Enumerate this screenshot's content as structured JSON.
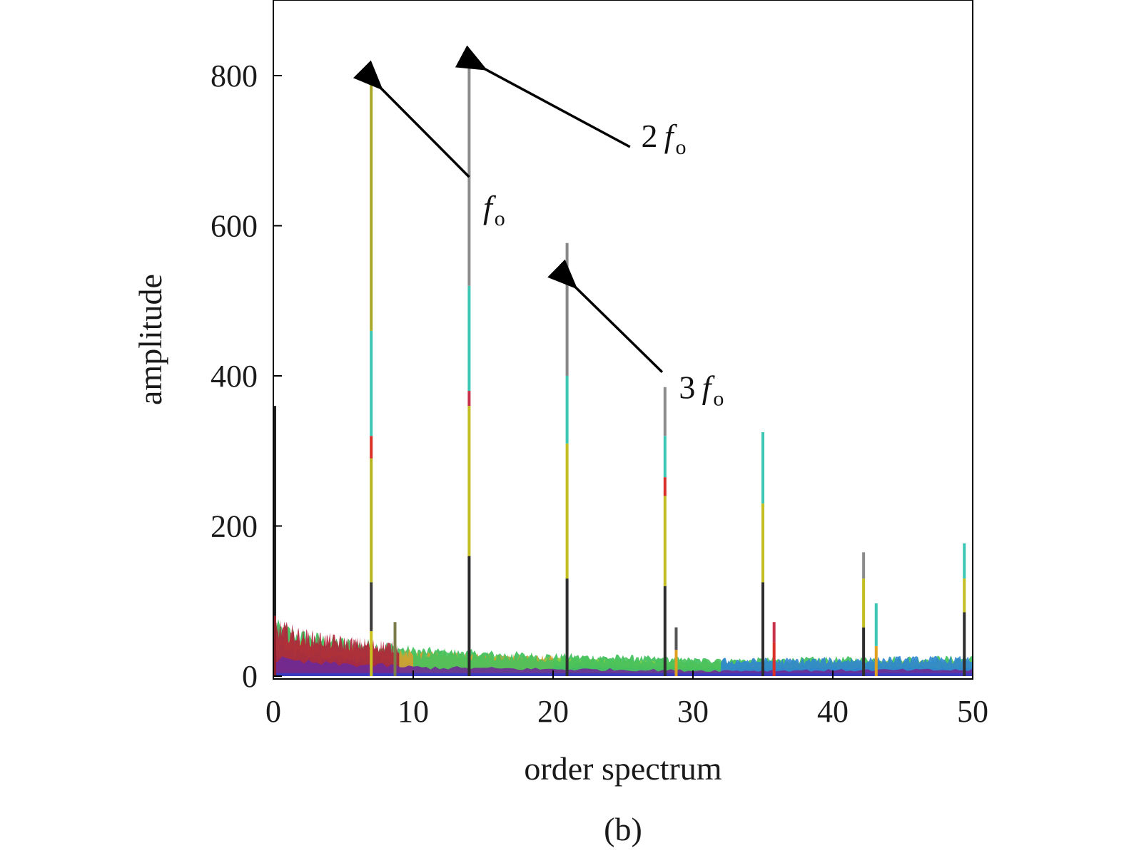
{
  "chart_data": {
    "type": "bar",
    "title": "",
    "xlabel": "order spectrum",
    "ylabel": "amplitude",
    "caption": "(b)",
    "xlim": [
      0,
      50
    ],
    "ylim": [
      0,
      900
    ],
    "xticks": [
      0,
      10,
      20,
      30,
      40,
      50
    ],
    "yticks": [
      0,
      200,
      400,
      600,
      800
    ],
    "grid": false,
    "legend": "none",
    "peaks": [
      {
        "x": 0.1,
        "y": 360,
        "segments": [
          {
            "to": 80,
            "color": "#8a1f2c"
          },
          {
            "to": 360,
            "color": "#1c1c1c"
          }
        ]
      },
      {
        "x": 7.0,
        "y": 797,
        "segments": [
          {
            "to": 60,
            "color": "#c9c21f"
          },
          {
            "to": 125,
            "color": "#3a3a3a"
          },
          {
            "to": 290,
            "color": "#b8b620"
          },
          {
            "to": 320,
            "color": "#d9302a"
          },
          {
            "to": 460,
            "color": "#3cc7b4"
          },
          {
            "to": 797,
            "color": "#a8a82a"
          }
        ]
      },
      {
        "x": 8.7,
        "y": 72,
        "segments": [
          {
            "to": 72,
            "color": "#7c7c4a"
          }
        ]
      },
      {
        "x": 14.0,
        "y": 830,
        "segments": [
          {
            "to": 160,
            "color": "#2a2a2a"
          },
          {
            "to": 360,
            "color": "#c3be22"
          },
          {
            "to": 380,
            "color": "#c8324a"
          },
          {
            "to": 520,
            "color": "#3cc7b4"
          },
          {
            "to": 830,
            "color": "#8c8c8c"
          }
        ]
      },
      {
        "x": 21.0,
        "y": 577,
        "segments": [
          {
            "to": 130,
            "color": "#2e2e2e"
          },
          {
            "to": 310,
            "color": "#c3be22"
          },
          {
            "to": 400,
            "color": "#3cc7b4"
          },
          {
            "to": 577,
            "color": "#888888"
          }
        ]
      },
      {
        "x": 28.0,
        "y": 385,
        "segments": [
          {
            "to": 120,
            "color": "#2e2e2e"
          },
          {
            "to": 240,
            "color": "#c3be22"
          },
          {
            "to": 265,
            "color": "#d9302a"
          },
          {
            "to": 320,
            "color": "#3cc7b4"
          },
          {
            "to": 385,
            "color": "#8c8c8c"
          }
        ]
      },
      {
        "x": 28.8,
        "y": 65,
        "segments": [
          {
            "to": 35,
            "color": "#e0a020"
          },
          {
            "to": 65,
            "color": "#555555"
          }
        ]
      },
      {
        "x": 35.0,
        "y": 325,
        "segments": [
          {
            "to": 125,
            "color": "#2e2e2e"
          },
          {
            "to": 230,
            "color": "#c3be22"
          },
          {
            "to": 325,
            "color": "#3cc7b4"
          }
        ]
      },
      {
        "x": 35.8,
        "y": 72,
        "segments": [
          {
            "to": 45,
            "color": "#d9302a"
          },
          {
            "to": 72,
            "color": "#c8324a"
          }
        ]
      },
      {
        "x": 42.2,
        "y": 165,
        "segments": [
          {
            "to": 65,
            "color": "#2e2e2e"
          },
          {
            "to": 130,
            "color": "#c3be22"
          },
          {
            "to": 165,
            "color": "#8c8c8c"
          }
        ]
      },
      {
        "x": 43.1,
        "y": 97,
        "segments": [
          {
            "to": 40,
            "color": "#e0a020"
          },
          {
            "to": 97,
            "color": "#3cc7b4"
          }
        ]
      },
      {
        "x": 49.4,
        "y": 177,
        "segments": [
          {
            "to": 85,
            "color": "#2e2e2e"
          },
          {
            "to": 130,
            "color": "#c3be22"
          },
          {
            "to": 177,
            "color": "#3cc7b4"
          }
        ]
      }
    ],
    "noise_floor": {
      "x": [
        0,
        2,
        5,
        8,
        10,
        15,
        20,
        25,
        30,
        35,
        40,
        45,
        50
      ],
      "y": [
        62,
        50,
        42,
        38,
        32,
        28,
        25,
        23,
        20,
        20,
        21,
        22,
        22
      ],
      "colors": [
        "#c0263a",
        "#e0a020",
        "#3cbf5a",
        "#2f7fc8",
        "#7a2a9a"
      ]
    },
    "annotations": [
      {
        "label_num": "",
        "label_f": "f",
        "label_sub": "o",
        "target": [
          7.6,
          785
        ],
        "tail": [
          14.0,
          665
        ],
        "text_at": [
          15.0,
          610
        ]
      },
      {
        "label_num": "2",
        "label_f": "f",
        "label_sub": "o",
        "target": [
          15.0,
          810
        ],
        "tail": [
          25.5,
          705
        ],
        "text_at": [
          26.3,
          705
        ]
      },
      {
        "label_num": "3",
        "label_f": "f",
        "label_sub": "o",
        "target": [
          21.5,
          520
        ],
        "tail": [
          27.8,
          405
        ],
        "text_at": [
          29.0,
          370
        ]
      }
    ]
  }
}
